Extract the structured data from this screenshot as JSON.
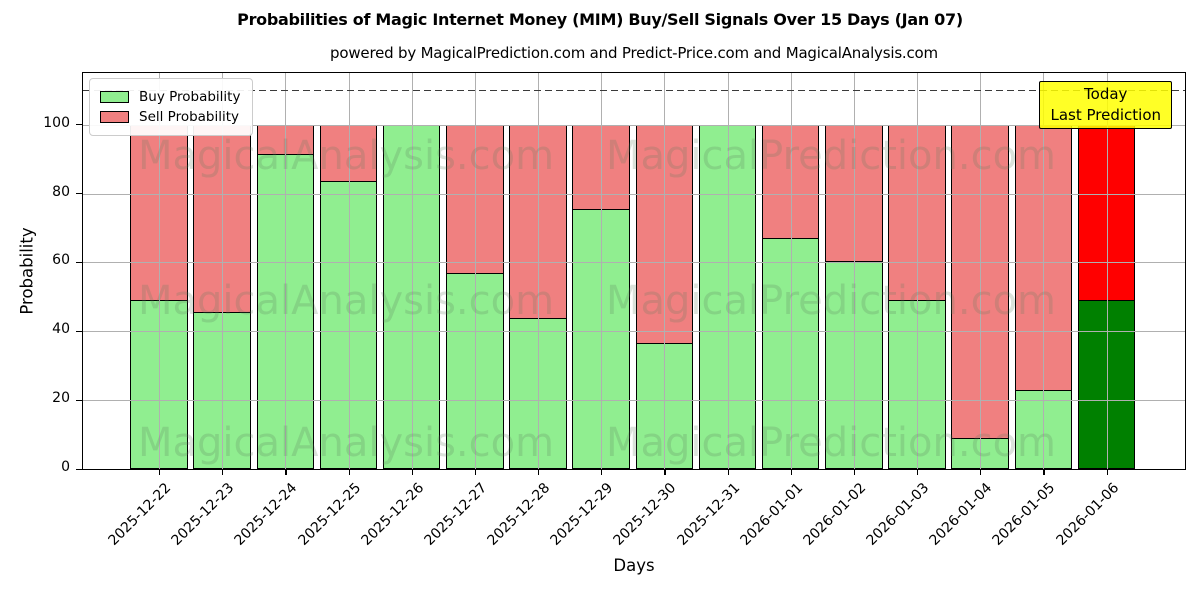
{
  "chart_data": {
    "type": "bar",
    "stacked": true,
    "title": "Probabilities of Magic Internet Money (MIM) Buy/Sell Signals Over 15 Days (Jan 07)",
    "subtitle": "powered by MagicalPrediction.com and Predict-Price.com and MagicalAnalysis.com",
    "xlabel": "Days",
    "ylabel": "Probability",
    "categories": [
      "2025-12-22",
      "2025-12-23",
      "2025-12-24",
      "2025-12-25",
      "2025-12-26",
      "2025-12-27",
      "2025-12-28",
      "2025-12-29",
      "2025-12-30",
      "2025-12-31",
      "2026-01-01",
      "2026-01-02",
      "2026-01-03",
      "2026-01-04",
      "2026-01-05",
      "2026-01-06"
    ],
    "series": [
      {
        "name": "Buy Probability",
        "color": "#90ee90",
        "values": [
          49,
          45.5,
          91.5,
          83.5,
          100,
          57,
          44,
          75.5,
          36.5,
          100,
          67,
          60.5,
          49,
          9,
          23,
          49
        ]
      },
      {
        "name": "Sell Probability",
        "color": "#f08080",
        "values": [
          51,
          54.5,
          8.5,
          16.5,
          0,
          43,
          56,
          24.5,
          63.5,
          0,
          33,
          39.5,
          51,
          91,
          77,
          51
        ]
      }
    ],
    "today_bar": {
      "index": 15,
      "buy_color": "#008000",
      "sell_color": "#ff0000"
    },
    "ylim": [
      0,
      115
    ],
    "yticks": [
      0,
      20,
      40,
      60,
      80,
      100
    ],
    "dashed_line_y": 110,
    "grid": true,
    "legend_position": "upper left",
    "bar_edge_color": "#000000",
    "grid_color": "#b0b0b0"
  },
  "legend": {
    "items": [
      {
        "label": "Buy Probability",
        "color": "#90ee90"
      },
      {
        "label": "Sell Probability",
        "color": "#f08080"
      }
    ]
  },
  "annotation": {
    "lines": [
      "Today",
      "Last Prediction"
    ],
    "bg_color": "#ffff00"
  },
  "watermarks": {
    "texts": [
      "MagicalAnalysis.com",
      "MagicalPrediction.com"
    ],
    "color": "rgba(90,125,90,0.22)"
  }
}
